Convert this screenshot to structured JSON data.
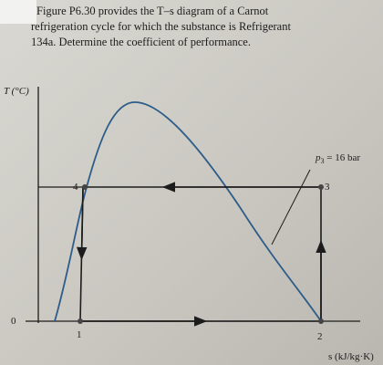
{
  "problem": {
    "lines": [
      "Figure P6.30 provides the T–s diagram of a Carnot",
      "refrigeration cycle for which the substance is Refrigerant",
      "134a. Determine the coefficient of performance."
    ]
  },
  "diagram": {
    "y_axis_label": "T (°C)",
    "x_axis_label": "s (kJ/kg·K)",
    "zero_label": "0",
    "points": [
      "1",
      "2",
      "3",
      "4"
    ],
    "pressure_label": {
      "symbol": "p",
      "subscript": "3",
      "rest": " = 16 bar"
    }
  }
}
